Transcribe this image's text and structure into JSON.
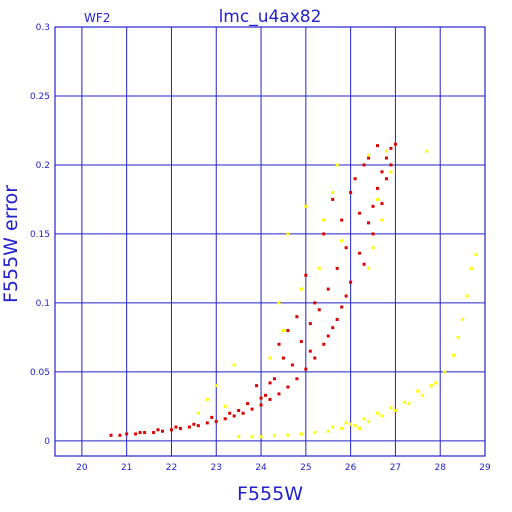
{
  "chart_data": {
    "type": "scatter",
    "title": "lmc_u4ax82",
    "corner_label": "WF2",
    "xlabel": "F555W",
    "ylabel": "F555W error",
    "xlim": [
      19.4,
      29.0
    ],
    "ylim": [
      -0.011,
      0.3
    ],
    "x_ticks": [
      20,
      21,
      22,
      23,
      24,
      25,
      26,
      27,
      28,
      29
    ],
    "x_tick_labels": [
      "20",
      "21",
      "22",
      "23",
      "24",
      "25",
      "26",
      "27",
      "28",
      "29"
    ],
    "y_ticks": [
      0,
      0.05,
      0.1,
      0.15,
      0.2,
      0.25,
      0.3
    ],
    "y_tick_labels": [
      "0",
      "0.05",
      "0.1",
      "0.15",
      "0.2",
      "0.25",
      "0.3"
    ],
    "grid": true,
    "colors": {
      "grid": "#2222cc",
      "text": "#2222cc",
      "background": "#ffffff"
    },
    "series": [
      {
        "color": "#dd0000",
        "points": [
          [
            20.65,
            0.004
          ],
          [
            20.85,
            0.004
          ],
          [
            21.0,
            0.005
          ],
          [
            21.2,
            0.005
          ],
          [
            21.4,
            0.006
          ],
          [
            21.6,
            0.006
          ],
          [
            21.8,
            0.007
          ],
          [
            22.0,
            0.008
          ],
          [
            22.2,
            0.009
          ],
          [
            22.4,
            0.01
          ],
          [
            22.6,
            0.011
          ],
          [
            22.8,
            0.013
          ],
          [
            23.0,
            0.014
          ],
          [
            23.2,
            0.016
          ],
          [
            23.4,
            0.018
          ],
          [
            23.6,
            0.02
          ],
          [
            23.8,
            0.023
          ],
          [
            24.0,
            0.026
          ],
          [
            24.2,
            0.03
          ],
          [
            24.4,
            0.034
          ],
          [
            24.6,
            0.039
          ],
          [
            24.8,
            0.045
          ],
          [
            25.0,
            0.052
          ],
          [
            25.2,
            0.06
          ],
          [
            25.4,
            0.07
          ],
          [
            25.6,
            0.082
          ],
          [
            25.8,
            0.097
          ],
          [
            26.0,
            0.115
          ],
          [
            26.2,
            0.136
          ],
          [
            26.4,
            0.158
          ],
          [
            26.5,
            0.17
          ],
          [
            26.6,
            0.183
          ],
          [
            26.7,
            0.195
          ],
          [
            26.8,
            0.205
          ],
          [
            26.9,
            0.212
          ],
          [
            27.0,
            0.215
          ],
          [
            22.9,
            0.017
          ],
          [
            23.3,
            0.02
          ],
          [
            23.7,
            0.027
          ],
          [
            24.1,
            0.033
          ],
          [
            24.3,
            0.045
          ],
          [
            24.5,
            0.06
          ],
          [
            24.7,
            0.055
          ],
          [
            24.9,
            0.072
          ],
          [
            25.1,
            0.085
          ],
          [
            25.3,
            0.095
          ],
          [
            25.5,
            0.11
          ],
          [
            25.7,
            0.125
          ],
          [
            25.9,
            0.14
          ],
          [
            25.4,
            0.15
          ],
          [
            25.6,
            0.175
          ],
          [
            25.8,
            0.16
          ],
          [
            26.1,
            0.19
          ],
          [
            26.3,
            0.2
          ],
          [
            24.8,
            0.09
          ],
          [
            25.2,
            0.1
          ],
          [
            24.4,
            0.07
          ],
          [
            23.9,
            0.04
          ],
          [
            24.6,
            0.08
          ],
          [
            25.0,
            0.12
          ],
          [
            25.9,
            0.105
          ],
          [
            26.0,
            0.18
          ],
          [
            26.2,
            0.165
          ],
          [
            26.4,
            0.205
          ],
          [
            26.6,
            0.214
          ],
          [
            26.8,
            0.19
          ],
          [
            26.9,
            0.2
          ],
          [
            26.7,
            0.172
          ],
          [
            26.5,
            0.15
          ],
          [
            26.3,
            0.128
          ],
          [
            25.7,
            0.088
          ],
          [
            25.5,
            0.076
          ],
          [
            25.1,
            0.065
          ],
          [
            24.2,
            0.042
          ],
          [
            24.0,
            0.031
          ],
          [
            23.5,
            0.022
          ],
          [
            22.5,
            0.012
          ],
          [
            22.1,
            0.01
          ],
          [
            21.7,
            0.008
          ],
          [
            21.3,
            0.006
          ]
        ]
      },
      {
        "color": "#ffff00",
        "points": [
          [
            23.5,
            0.003
          ],
          [
            23.8,
            0.003
          ],
          [
            24.0,
            0.003
          ],
          [
            24.3,
            0.004
          ],
          [
            24.6,
            0.004
          ],
          [
            24.9,
            0.005
          ],
          [
            25.2,
            0.006
          ],
          [
            25.5,
            0.007
          ],
          [
            25.8,
            0.009
          ],
          [
            26.1,
            0.011
          ],
          [
            26.4,
            0.014
          ],
          [
            26.7,
            0.018
          ],
          [
            27.0,
            0.022
          ],
          [
            27.3,
            0.027
          ],
          [
            27.6,
            0.033
          ],
          [
            27.9,
            0.042
          ],
          [
            28.1,
            0.05
          ],
          [
            28.3,
            0.062
          ],
          [
            28.4,
            0.075
          ],
          [
            28.5,
            0.088
          ],
          [
            28.6,
            0.105
          ],
          [
            28.7,
            0.125
          ],
          [
            28.8,
            0.135
          ],
          [
            26.0,
            0.012
          ],
          [
            26.3,
            0.016
          ],
          [
            26.6,
            0.02
          ],
          [
            26.9,
            0.024
          ],
          [
            27.2,
            0.028
          ],
          [
            27.5,
            0.036
          ],
          [
            27.8,
            0.04
          ],
          [
            26.2,
            0.009
          ],
          [
            25.9,
            0.013
          ],
          [
            25.6,
            0.01
          ],
          [
            23.2,
            0.025
          ],
          [
            22.8,
            0.03
          ],
          [
            23.0,
            0.04
          ],
          [
            24.2,
            0.06
          ],
          [
            24.5,
            0.08
          ],
          [
            24.4,
            0.1
          ],
          [
            24.9,
            0.11
          ],
          [
            25.3,
            0.125
          ],
          [
            25.4,
            0.16
          ],
          [
            25.6,
            0.18
          ],
          [
            25.7,
            0.2
          ],
          [
            26.4,
            0.207
          ],
          [
            26.8,
            0.21
          ],
          [
            26.9,
            0.195
          ],
          [
            26.6,
            0.175
          ],
          [
            26.7,
            0.16
          ],
          [
            26.5,
            0.14
          ],
          [
            26.4,
            0.125
          ],
          [
            25.8,
            0.145
          ],
          [
            25.0,
            0.17
          ],
          [
            24.6,
            0.15
          ],
          [
            23.4,
            0.055
          ],
          [
            22.6,
            0.02
          ],
          [
            27.7,
            0.21
          ]
        ]
      }
    ]
  }
}
